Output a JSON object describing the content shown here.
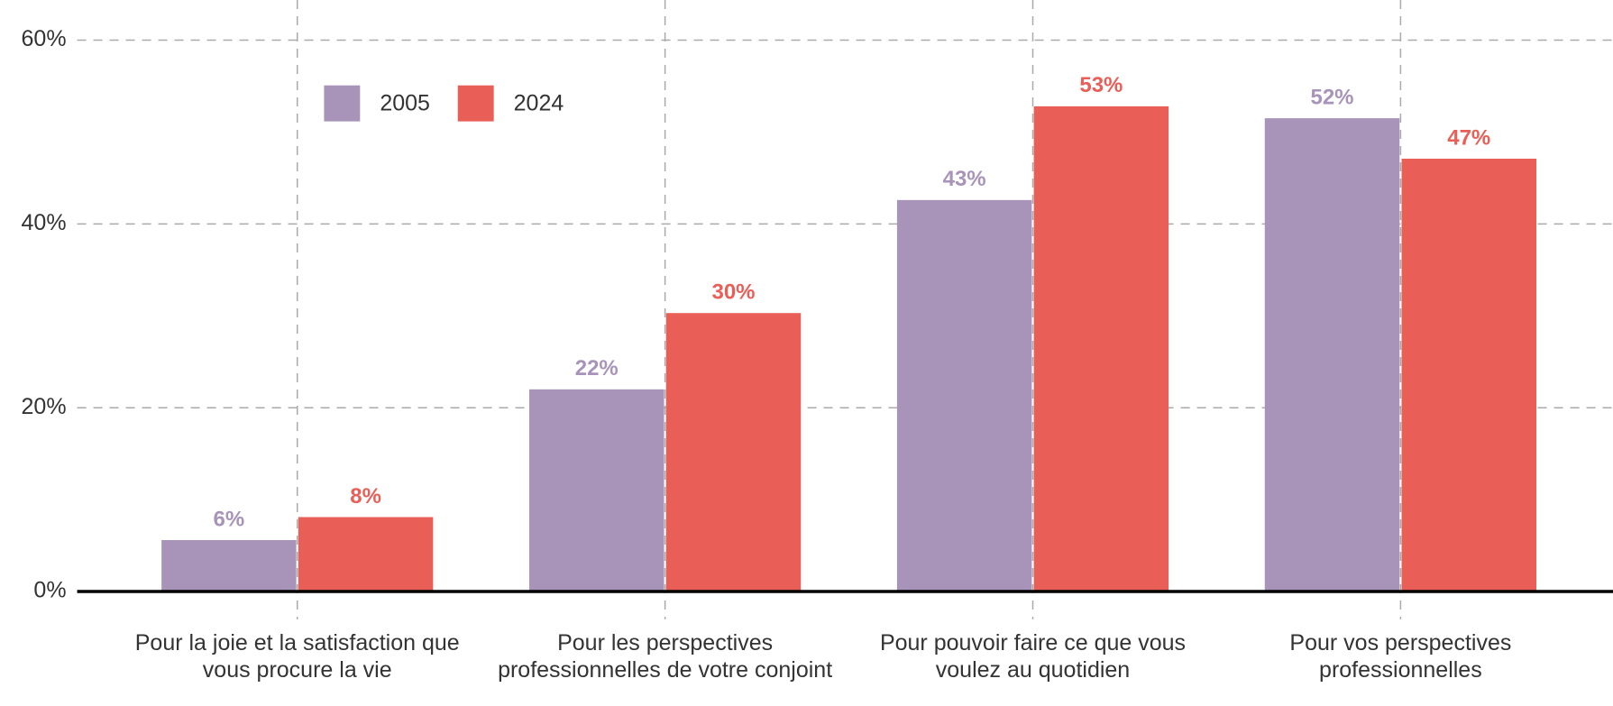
{
  "chart_data": {
    "type": "bar",
    "categories": [
      "Pour la joie et la satisfaction que vous procure la vie",
      "Pour les perspectives professionnelles de votre conjoint",
      "Pour pouvoir faire ce que vous voulez au quotidien",
      "Pour vos perspectives professionnelles"
    ],
    "series": [
      {
        "name": "2005",
        "color": "#a893b9",
        "values": [
          5.6,
          22,
          42.6,
          51.5
        ],
        "value_labels": [
          "6%",
          "22%",
          "43%",
          "52%"
        ]
      },
      {
        "name": "2024",
        "color": "#e95f57",
        "values": [
          8.1,
          30.3,
          52.8,
          47.1
        ],
        "value_labels": [
          "8%",
          "30%",
          "53%",
          "47%"
        ]
      }
    ],
    "ylim": [
      0,
      60
    ],
    "yticks": [
      {
        "value": 0,
        "label": "0%"
      },
      {
        "value": 20,
        "label": "20%"
      },
      {
        "value": 40,
        "label": "40%"
      },
      {
        "value": 60,
        "label": "60%"
      }
    ],
    "grid": true
  }
}
